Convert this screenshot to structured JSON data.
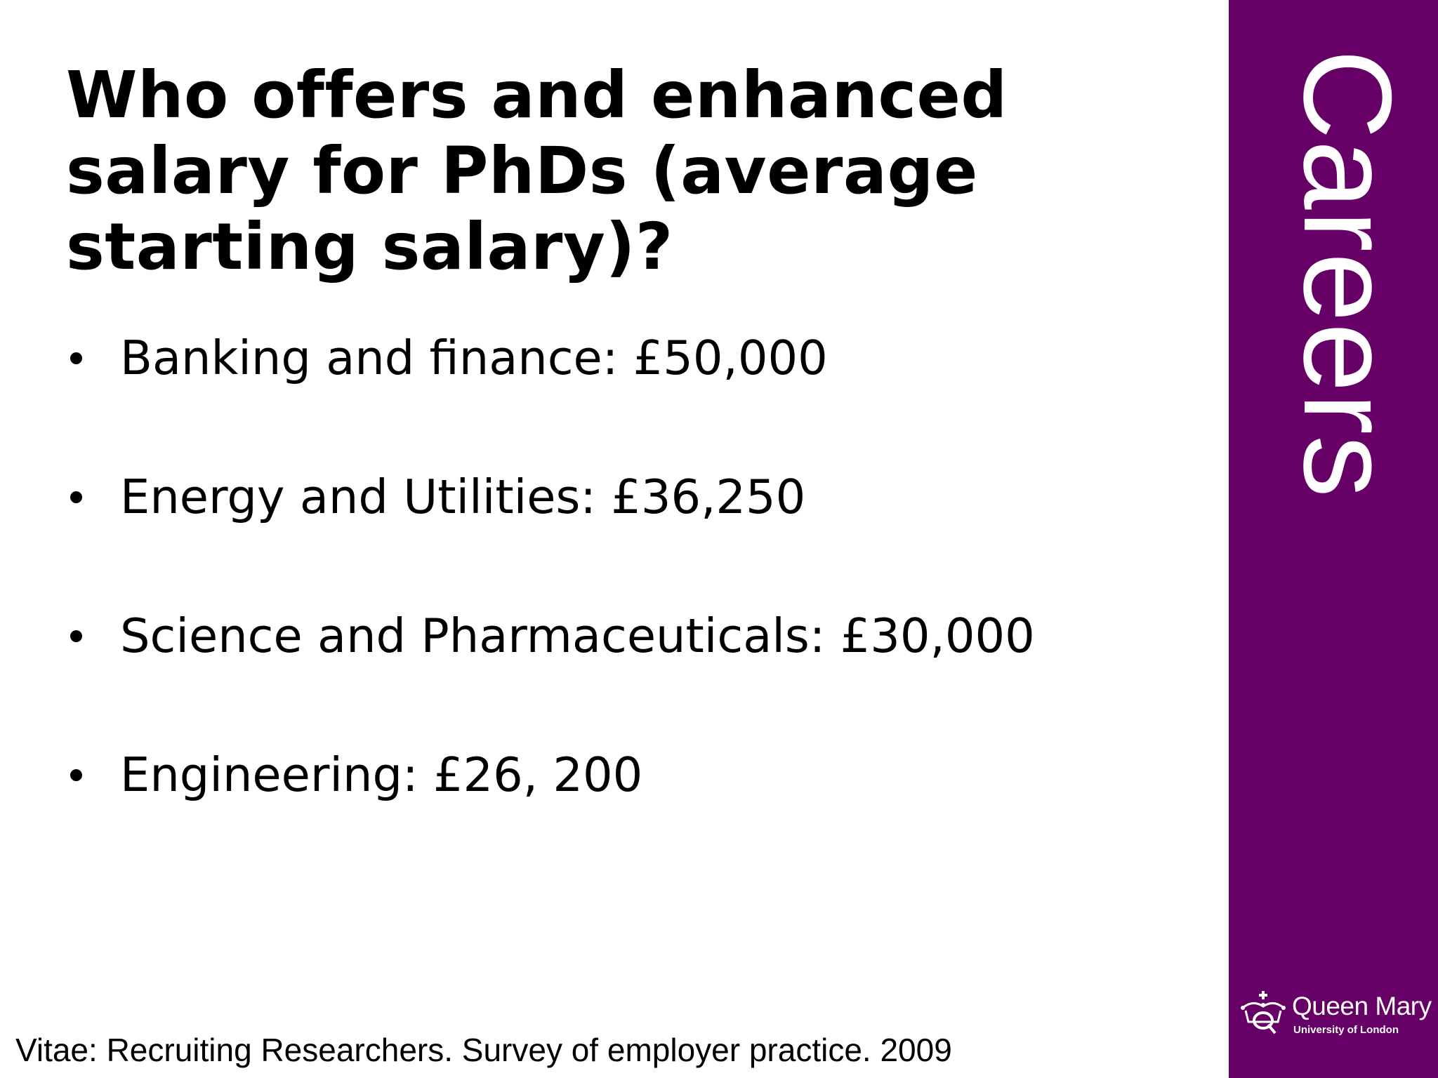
{
  "slide": {
    "title": "Who offers and enhanced salary for PhDs (average starting salary)?",
    "bullets": [
      "Banking and finance: £50,000",
      "Energy and Utilities: £36,250",
      "Science and Pharmaceuticals: £30,000",
      "Engineering: £26, 200"
    ],
    "citation": "Vitae: Recruiting Researchers. Survey of employer practice. 2009"
  },
  "sidebar": {
    "word": "Careers",
    "background_color": "#660066",
    "logo": {
      "icon": "crown-q-icon",
      "name": "Queen Mary",
      "subtitle": "University of London"
    }
  }
}
